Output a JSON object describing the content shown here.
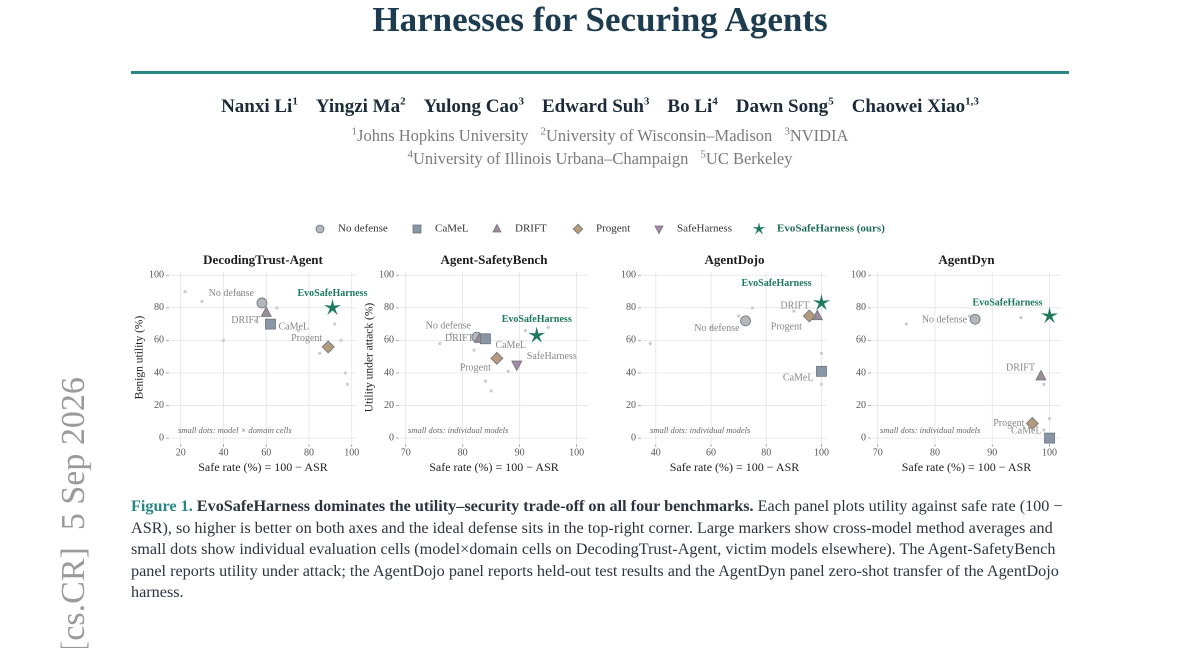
{
  "header": {
    "title": "Harnesses for Securing Agents",
    "authors": [
      {
        "name": "Nanxi Li",
        "sup": "1"
      },
      {
        "name": "Yingzi Ma",
        "sup": "2"
      },
      {
        "name": "Yulong Cao",
        "sup": "3"
      },
      {
        "name": "Edward Suh",
        "sup": "3"
      },
      {
        "name": "Bo Li",
        "sup": "4"
      },
      {
        "name": "Dawn Song",
        "sup": "5"
      },
      {
        "name": "Chaowei Xiao",
        "sup": "1,3"
      }
    ],
    "affiliations": [
      [
        {
          "sup": "1",
          "name": "Johns Hopkins University"
        },
        {
          "sup": "2",
          "name": "University of Wisconsin–Madison"
        },
        {
          "sup": "3",
          "name": "NVIDIA"
        }
      ],
      [
        {
          "sup": "4",
          "name": "University of Illinois Urbana–Champaign"
        },
        {
          "sup": "5",
          "name": "UC Berkeley"
        }
      ]
    ]
  },
  "arxiv_stamp": "[cs.CR]  5 Sep 2026",
  "legend": [
    {
      "label": "No defense",
      "marker": "circle",
      "color": "#b3b7bb"
    },
    {
      "label": "CaMeL",
      "marker": "square",
      "color": "#8797a6"
    },
    {
      "label": "DRIFT",
      "marker": "triangle",
      "color": "#9a8c98"
    },
    {
      "label": "Progent",
      "marker": "diamond",
      "color": "#b59b7e"
    },
    {
      "label": "SafeHarness",
      "marker": "triangle-down",
      "color": "#a38aa3"
    },
    {
      "label": "EvoSafeHarness (ours)",
      "marker": "star",
      "color": "#1e7a5e"
    }
  ],
  "chart_data": [
    {
      "type": "scatter",
      "title": "DecodingTrust-Agent",
      "x_label": "Safe rate (%) = 100 − ASR",
      "y_label": "Benign utility (%)",
      "note": "small dots: model × domain cells",
      "xlim": [
        15,
        102
      ],
      "xticks": [
        20,
        40,
        60,
        80,
        100
      ],
      "ylim": [
        -3,
        102
      ],
      "yticks": [
        0,
        20,
        40,
        60,
        80,
        100
      ],
      "grid": true,
      "cells": {
        "color": "#c9cdd0",
        "x": [
          22,
          30,
          40,
          48,
          55,
          65,
          75,
          85,
          92,
          95,
          97,
          98
        ],
        "values": [
          90,
          84,
          60,
          88,
          72,
          80,
          66,
          52,
          70,
          60,
          40,
          33
        ]
      },
      "series": [
        {
          "name": "No defense",
          "marker": "circle",
          "color": "#b3b7bb",
          "x": [
            58
          ],
          "values": [
            83
          ]
        },
        {
          "name": "DRIFT",
          "marker": "triangle",
          "color": "#9a8c98",
          "x": [
            60
          ],
          "values": [
            77
          ]
        },
        {
          "name": "CaMeL",
          "marker": "square",
          "color": "#8797a6",
          "x": [
            62
          ],
          "values": [
            70
          ]
        },
        {
          "name": "Progent",
          "marker": "diamond",
          "color": "#b59b7e",
          "x": [
            89
          ],
          "values": [
            56
          ]
        },
        {
          "name": "EvoSafeHarness",
          "marker": "star",
          "color": "#1e7a5e",
          "x": [
            91
          ],
          "values": [
            80
          ]
        }
      ]
    },
    {
      "type": "scatter",
      "title": "Agent-SafetyBench",
      "x_label": "Safe rate (%) = 100 − ASR",
      "y_label": "Utility under attack (%)",
      "note": "small dots: individual models",
      "xlim": [
        69,
        102
      ],
      "xticks": [
        70,
        80,
        90,
        100
      ],
      "ylim": [
        -3,
        102
      ],
      "yticks": [
        0,
        20,
        40,
        60,
        80,
        100
      ],
      "grid": true,
      "cells": {
        "color": "#c9cdd0",
        "x": [
          76,
          78,
          82,
          85,
          88,
          91,
          95,
          84
        ],
        "values": [
          58,
          64,
          54,
          29,
          41,
          66,
          68,
          35
        ]
      },
      "series": [
        {
          "name": "No defense",
          "marker": "circle",
          "color": "#b3b7bb",
          "x": [
            82.5
          ],
          "values": [
            62
          ]
        },
        {
          "name": "DRIFT",
          "marker": "triangle",
          "color": "#9a8c98",
          "x": [
            83
          ],
          "values": [
            61
          ]
        },
        {
          "name": "CaMeL",
          "marker": "square",
          "color": "#8797a6",
          "x": [
            84
          ],
          "values": [
            61
          ]
        },
        {
          "name": "Progent",
          "marker": "diamond",
          "color": "#b59b7e",
          "x": [
            86
          ],
          "values": [
            49
          ]
        },
        {
          "name": "SafeHarness",
          "marker": "triangle-down",
          "color": "#a38aa3",
          "x": [
            89.5
          ],
          "values": [
            45
          ]
        },
        {
          "name": "EvoSafeHarness",
          "marker": "star",
          "color": "#1e7a5e",
          "x": [
            93
          ],
          "values": [
            63
          ]
        }
      ]
    },
    {
      "type": "scatter",
      "title": "AgentDojo",
      "x_label": "Safe rate (%) = 100 − ASR",
      "note": "small dots: individual models",
      "xlim": [
        35,
        102
      ],
      "xticks": [
        40,
        60,
        80,
        100
      ],
      "ylim": [
        -3,
        102
      ],
      "yticks": [
        0,
        20,
        40,
        60,
        80,
        100
      ],
      "grid": true,
      "cells": {
        "color": "#c9cdd0",
        "x": [
          38,
          60,
          70,
          75,
          90,
          100,
          100
        ],
        "values": [
          58,
          68,
          75,
          80,
          78,
          52,
          33
        ]
      },
      "series": [
        {
          "name": "No defense",
          "marker": "circle",
          "color": "#b3b7bb",
          "x": [
            72.5
          ],
          "values": [
            72
          ]
        },
        {
          "name": "CaMeL",
          "marker": "square",
          "color": "#8797a6",
          "x": [
            100
          ],
          "values": [
            41
          ]
        },
        {
          "name": "DRIFT",
          "marker": "triangle",
          "color": "#9a8c98",
          "x": [
            98.5
          ],
          "values": [
            75
          ]
        },
        {
          "name": "Progent",
          "marker": "diamond",
          "color": "#b59b7e",
          "x": [
            95.6
          ],
          "values": [
            75
          ]
        },
        {
          "name": "EvoSafeHarness",
          "marker": "star",
          "color": "#1e7a5e",
          "x": [
            100
          ],
          "values": [
            83
          ]
        }
      ]
    },
    {
      "type": "scatter",
      "title": "AgentDyn",
      "x_label": "Safe rate (%) = 100 − ASR",
      "note": "small dots: individual models",
      "xlim": [
        69,
        102
      ],
      "xticks": [
        70,
        80,
        90,
        100
      ],
      "ylim": [
        -3,
        102
      ],
      "yticks": [
        0,
        20,
        40,
        60,
        80,
        100
      ],
      "grid": true,
      "cells": {
        "color": "#c9cdd0",
        "x": [
          75,
          86,
          95,
          99,
          100,
          99
        ],
        "values": [
          70,
          75,
          74,
          33,
          12,
          5
        ]
      },
      "series": [
        {
          "name": "No defense",
          "marker": "circle",
          "color": "#b3b7bb",
          "x": [
            87
          ],
          "values": [
            73
          ]
        },
        {
          "name": "DRIFT",
          "marker": "triangle",
          "color": "#9a8c98",
          "x": [
            98.5
          ],
          "values": [
            38
          ]
        },
        {
          "name": "Progent",
          "marker": "diamond",
          "color": "#b59b7e",
          "x": [
            97
          ],
          "values": [
            9
          ]
        },
        {
          "name": "CaMeL",
          "marker": "square",
          "color": "#8797a6",
          "x": [
            100
          ],
          "values": [
            0
          ]
        },
        {
          "name": "EvoSafeHarness",
          "marker": "star",
          "color": "#1e7a5e",
          "x": [
            100
          ],
          "values": [
            75
          ]
        }
      ]
    }
  ],
  "caption": {
    "label": "Figure 1.",
    "headline": "EvoSafeHarness dominates the utility–security trade-off on all four benchmarks.",
    "text": "Each panel plots utility against safe rate (100 − ASR), so higher is better on both axes and the ideal defense sits in the top-right corner. Large markers show cross-model method averages and small dots show individual evaluation cells (model×domain cells on DecodingTrust-Agent, victim models elsewhere). The Agent-SafetyBench panel reports utility under attack; the AgentDojo panel reports held-out test results and the AgentDyn panel zero-shot transfer of the AgentDojo harness."
  }
}
